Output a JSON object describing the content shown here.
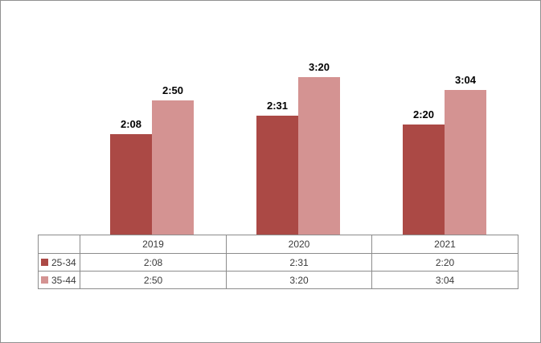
{
  "window": {
    "background": "#ffffff",
    "border_color": "#919191"
  },
  "chart_data": {
    "type": "bar",
    "title": "",
    "categories": [
      "2019",
      "2020",
      "2021"
    ],
    "series": [
      {
        "name": "25-34",
        "color": "#ab4945",
        "values_minutes": [
          128,
          151,
          140
        ],
        "labels": [
          "2:08",
          "2:31",
          "2:20"
        ]
      },
      {
        "name": "35-44",
        "color": "#d49392",
        "values_minutes": [
          170,
          200,
          184
        ],
        "labels": [
          "2:50",
          "3:20",
          "3:04"
        ]
      }
    ],
    "value_format": "h:mm",
    "grid": false,
    "axes_visible": false,
    "legend_position": "data-table-left",
    "data_table": {
      "header": [
        "2019",
        "2020",
        "2021"
      ],
      "rows": [
        {
          "legend": "25-34",
          "cells": [
            "2:08",
            "2:31",
            "2:20"
          ]
        },
        {
          "legend": "35-44",
          "cells": [
            "2:50",
            "3:20",
            "3:04"
          ]
        }
      ]
    }
  }
}
